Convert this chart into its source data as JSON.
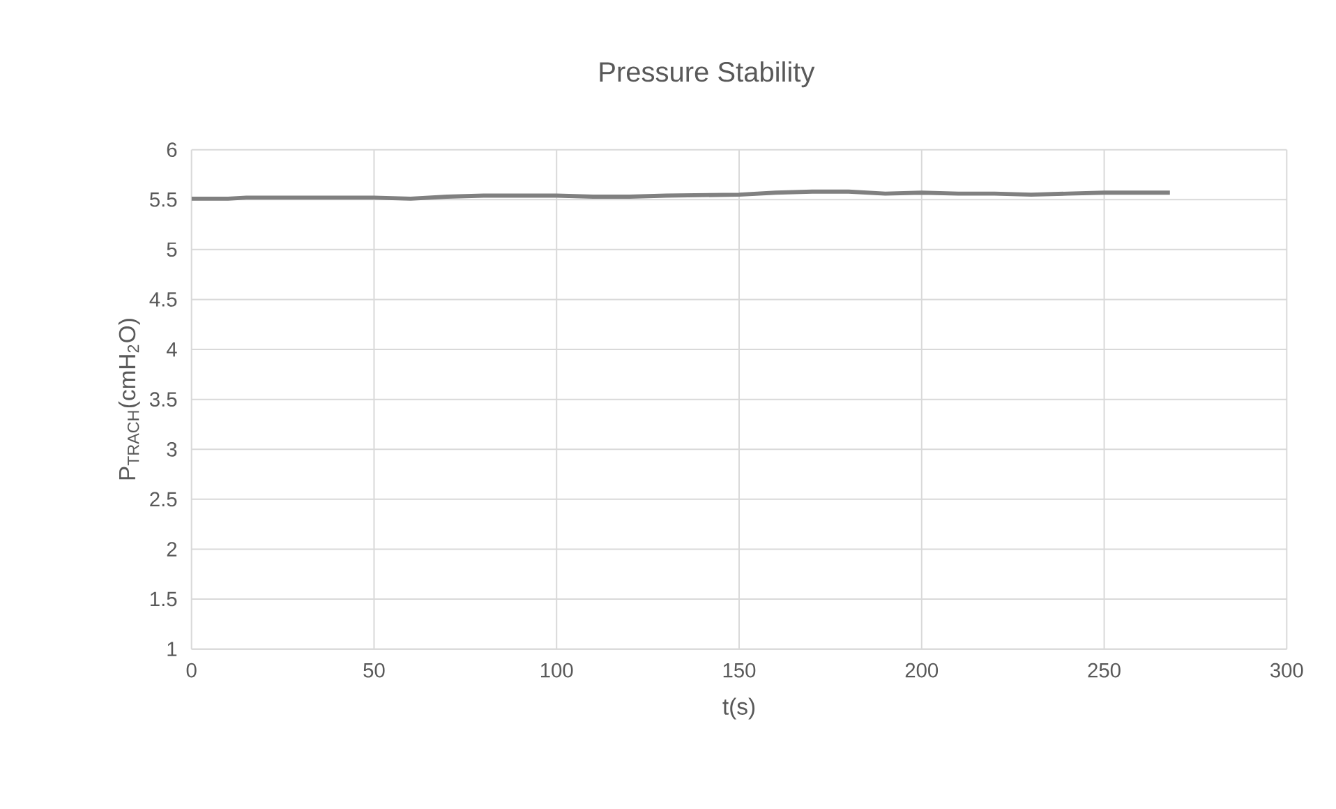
{
  "chart_data": {
    "type": "line",
    "title": "Pressure Stability",
    "xlabel": "t(s)",
    "ylabel": "P$_{TRACH}$(cmH$_{2}$O)",
    "x": [
      0,
      10,
      15,
      30,
      50,
      60,
      70,
      80,
      100,
      110,
      120,
      130,
      150,
      160,
      170,
      180,
      190,
      200,
      210,
      220,
      230,
      240,
      250,
      260,
      268
    ],
    "series": [
      {
        "color": "#808080",
        "values": [
          5.51,
          5.51,
          5.52,
          5.52,
          5.52,
          5.51,
          5.53,
          5.54,
          5.54,
          5.53,
          5.53,
          5.54,
          5.55,
          5.57,
          5.58,
          5.58,
          5.56,
          5.57,
          5.56,
          5.56,
          5.55,
          5.56,
          5.57,
          5.57,
          5.57
        ]
      }
    ],
    "xlim": [
      0,
      300
    ],
    "xticks": [
      0,
      50,
      100,
      150,
      200,
      250,
      300
    ],
    "ylim": [
      1,
      6
    ],
    "yticks": [
      1,
      1.5,
      2,
      2.5,
      3,
      3.5,
      4,
      4.5,
      5,
      5.5,
      6
    ],
    "grid": true,
    "marker": "none",
    "line_style": "solid"
  }
}
